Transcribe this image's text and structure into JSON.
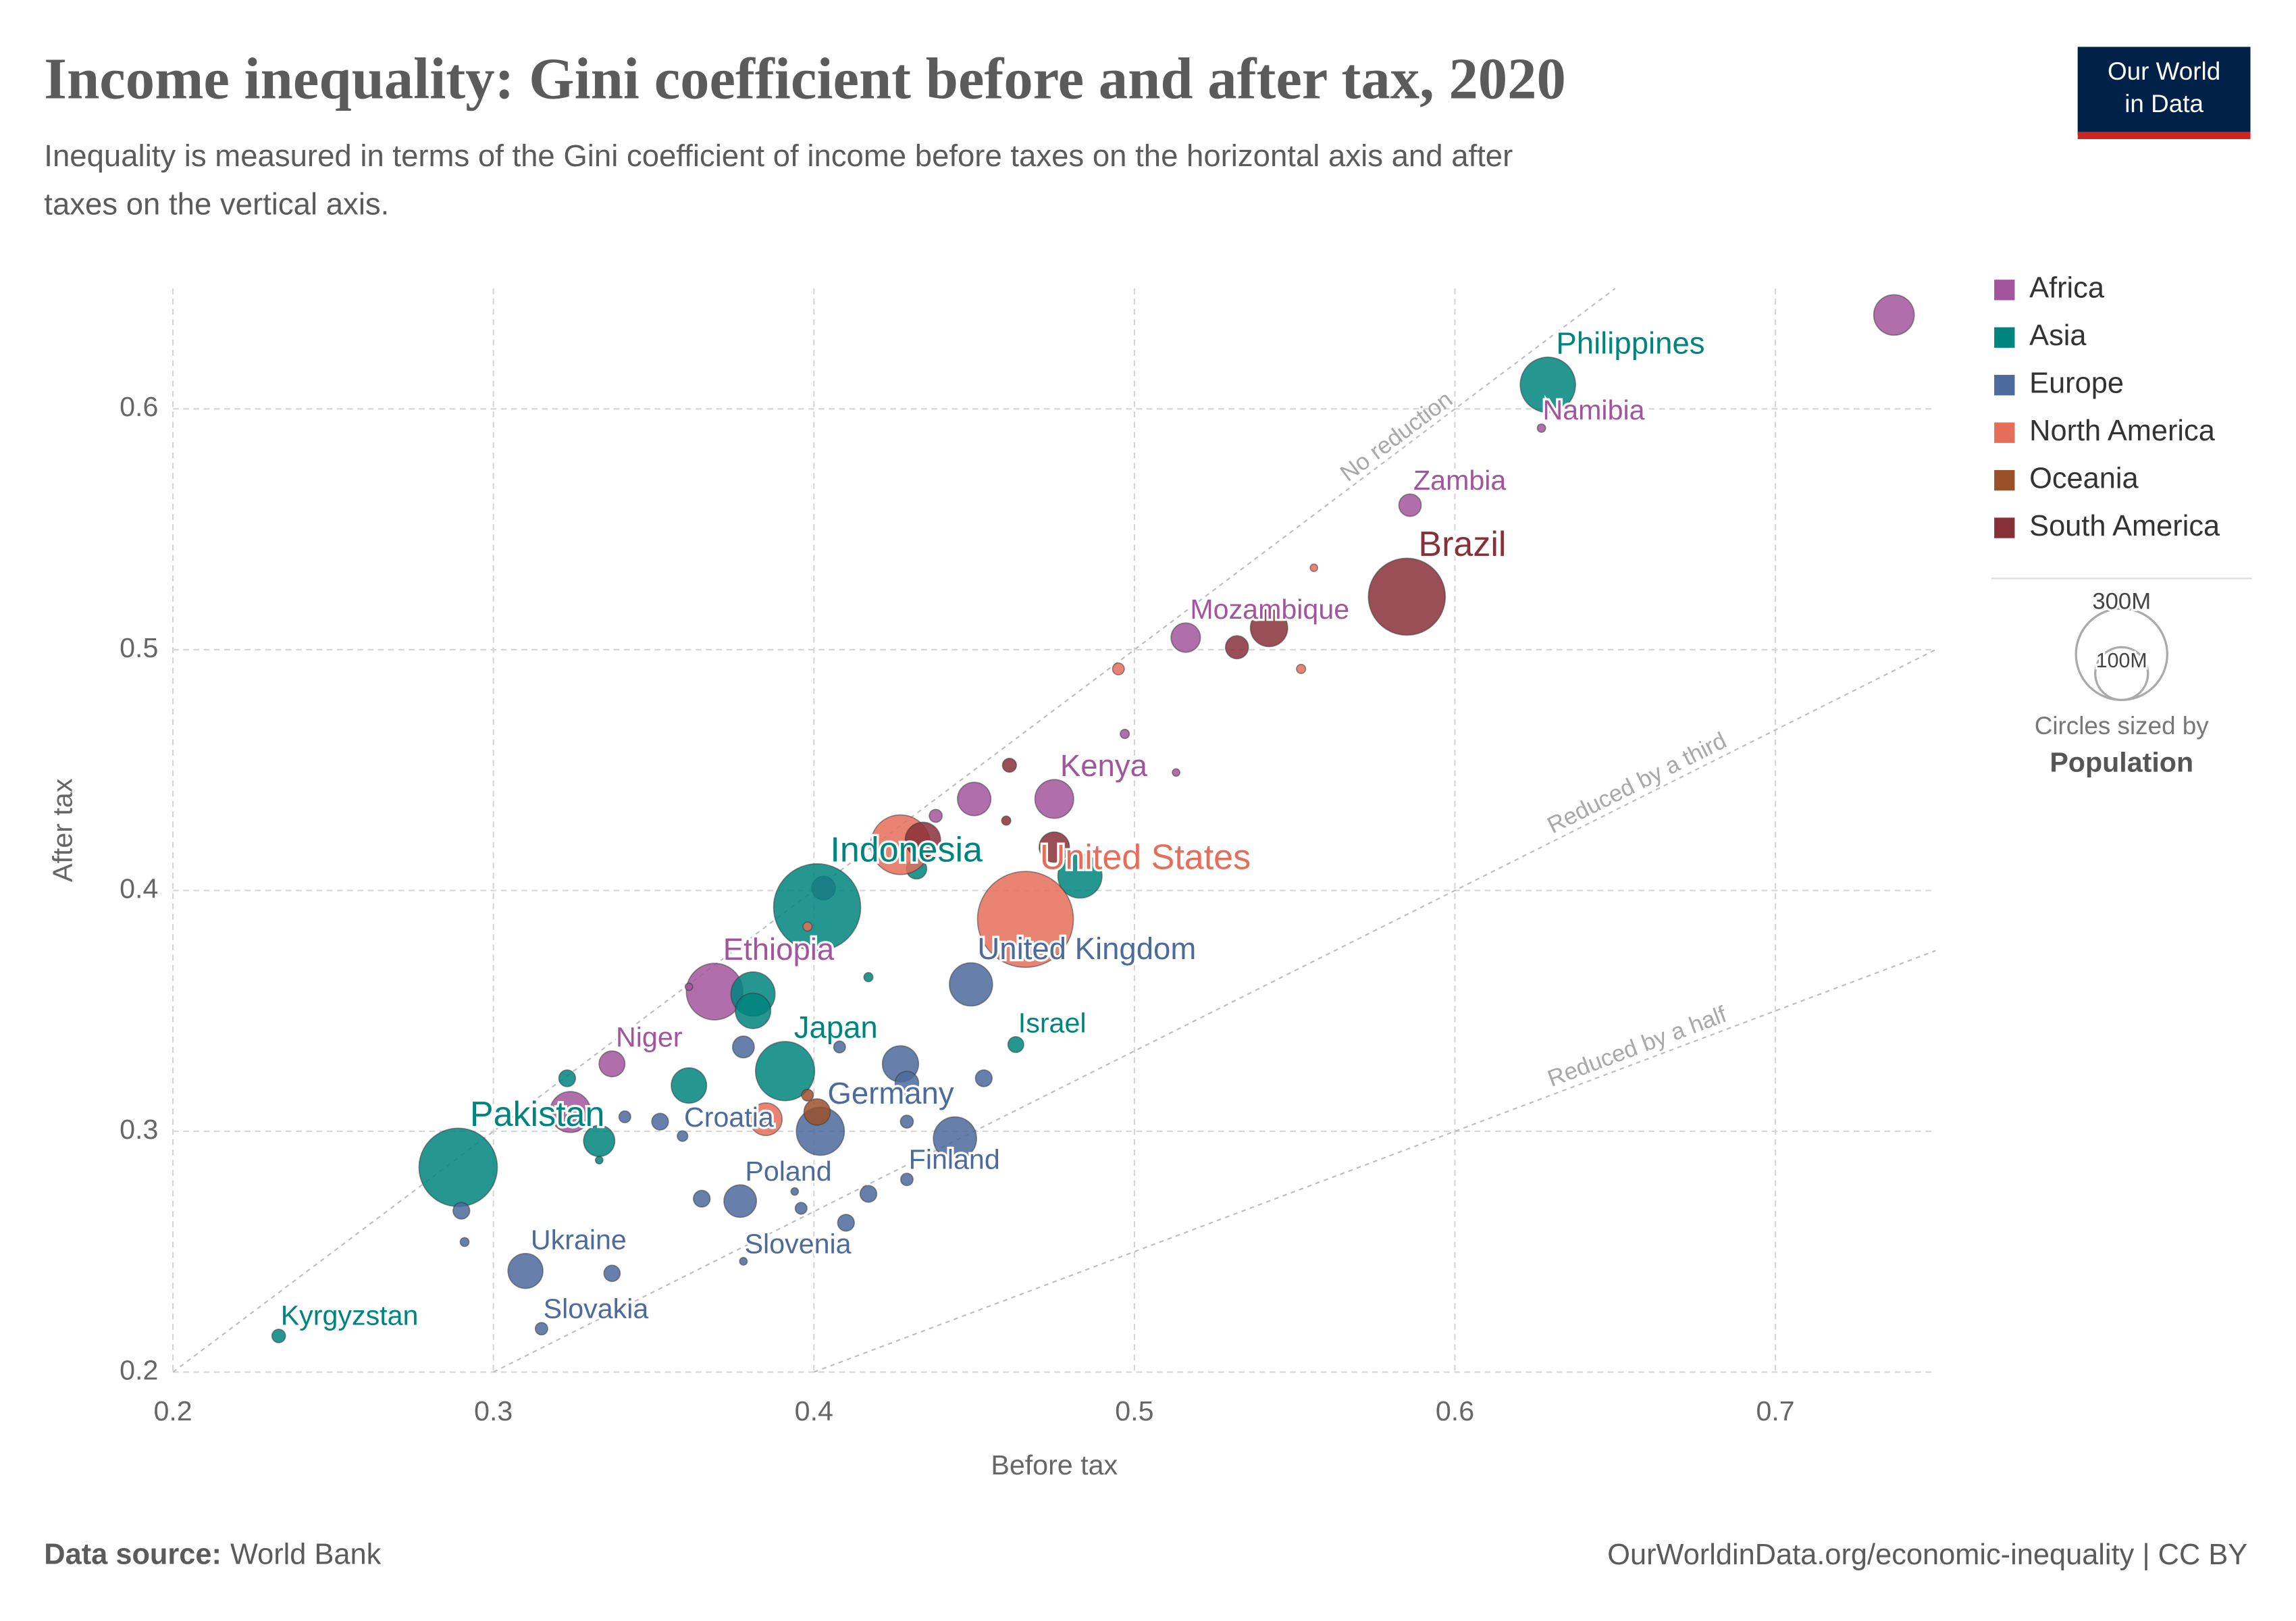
{
  "chart_data": {
    "type": "scatter",
    "title": "Income inequality: Gini coefficient before and after tax, 2020",
    "subtitle": [
      "Inequality is measured in terms of the Gini coefficient of income before taxes on the horizontal axis and after",
      "taxes on the vertical axis."
    ],
    "x_label": "Before tax",
    "y_label": "After tax",
    "xlim": [
      0.2,
      0.75
    ],
    "ylim": [
      0.2,
      0.65
    ],
    "xticks": [
      0.2,
      0.3,
      0.4,
      0.5,
      0.6,
      0.7
    ],
    "yticks": [
      0.2,
      0.3,
      0.4,
      0.5,
      0.6
    ],
    "grid": true,
    "reference_lines": [
      "No reduction",
      "Reduced by a third",
      "Reduced by a half"
    ],
    "size_legend": {
      "values": [
        {
          "value": 300,
          "label": "300M"
        },
        {
          "value": 100,
          "label": "100M"
        }
      ],
      "caption": "Circles sized by",
      "variable": "Population"
    },
    "series": [
      {
        "name": "Africa",
        "color": "#a2559c",
        "x": [
          0.737,
          0.627,
          0.586,
          0.516,
          0.497,
          0.475,
          0.45,
          0.513,
          0.438,
          0.403,
          0.369,
          0.361,
          0.337,
          0.324
        ],
        "y": [
          0.639,
          0.592,
          0.56,
          0.505,
          0.465,
          0.438,
          0.438,
          0.449,
          0.431,
          0.401,
          0.358,
          0.36,
          0.328,
          0.308
        ],
        "sizes": [
          59,
          2.5,
          18,
          31,
          3,
          54,
          40,
          2,
          6,
          20,
          115,
          2,
          24,
          60
        ],
        "labels": [
          null,
          "Namibia",
          "Zambia",
          "Mozambique",
          null,
          "Kenya",
          null,
          null,
          null,
          null,
          "Ethiopia",
          null,
          "Niger",
          null
        ]
      },
      {
        "name": "Asia",
        "color": "#00847e",
        "x": [
          0.629,
          0.401,
          0.483,
          0.432,
          0.381,
          0.381,
          0.417,
          0.391,
          0.361,
          0.323,
          0.333,
          0.333,
          0.289,
          0.463,
          0.233
        ],
        "y": [
          0.61,
          0.393,
          0.406,
          0.409,
          0.357,
          0.35,
          0.364,
          0.325,
          0.319,
          0.322,
          0.296,
          0.288,
          0.285,
          0.336,
          0.215
        ],
        "sizes": [
          110,
          273,
          70,
          15,
          70,
          45,
          3,
          126,
          45,
          10,
          35,
          2,
          221,
          9,
          6.6
        ],
        "labels": [
          "Philippines",
          "Indonesia",
          null,
          null,
          null,
          null,
          null,
          "Japan",
          null,
          null,
          null,
          null,
          "Pakistan",
          "Israel",
          "Kyrgyzstan"
        ]
      },
      {
        "name": "Europe",
        "color": "#4c6a9c",
        "x": [
          0.449,
          0.402,
          0.427,
          0.429,
          0.444,
          0.453,
          0.429,
          0.429,
          0.417,
          0.41,
          0.396,
          0.394,
          0.377,
          0.365,
          0.378,
          0.378,
          0.408,
          0.359,
          0.352,
          0.341,
          0.31,
          0.337,
          0.315,
          0.29,
          0.291
        ],
        "y": [
          0.361,
          0.3,
          0.328,
          0.32,
          0.297,
          0.322,
          0.304,
          0.28,
          0.274,
          0.262,
          0.268,
          0.275,
          0.271,
          0.272,
          0.246,
          0.335,
          0.335,
          0.298,
          0.304,
          0.306,
          0.242,
          0.241,
          0.218,
          0.267,
          0.254
        ],
        "sizes": [
          67,
          83,
          47,
          20,
          67,
          10,
          6,
          5.5,
          10,
          10,
          5,
          2,
          38,
          10,
          2.1,
          17,
          5,
          4,
          10,
          5,
          44,
          9.5,
          5.5,
          10,
          2.8
        ],
        "labels": [
          "United Kingdom",
          "Germany",
          null,
          null,
          null,
          null,
          null,
          "Finland",
          null,
          null,
          null,
          null,
          "Poland",
          null,
          "Slovenia",
          null,
          null,
          "Croatia",
          null,
          null,
          "Ukraine",
          null,
          "Slovakia",
          null,
          null
        ]
      },
      {
        "name": "North America",
        "color": "#e56e5a",
        "x": [
          0.466,
          0.427,
          0.385,
          0.495,
          0.552,
          0.556,
          0.398
        ],
        "y": [
          0.388,
          0.419,
          0.305,
          0.492,
          0.492,
          0.534,
          0.385
        ],
        "sizes": [
          331,
          128,
          38,
          5,
          3,
          2,
          3
        ],
        "labels": [
          "United States",
          null,
          null,
          null,
          null,
          null,
          null
        ]
      },
      {
        "name": "Oceania",
        "color": "#9a5129",
        "x": [
          0.401,
          0.398
        ],
        "y": [
          0.308,
          0.315
        ],
        "sizes": [
          25,
          5
        ],
        "labels": [
          null,
          null
        ]
      },
      {
        "name": "South America",
        "color": "#883039",
        "x": [
          0.585,
          0.542,
          0.532,
          0.475,
          0.434,
          0.461,
          0.46
        ],
        "y": [
          0.522,
          0.509,
          0.501,
          0.418,
          0.421,
          0.452,
          0.429
        ],
        "sizes": [
          213,
          50,
          19,
          33,
          45,
          7,
          3
        ],
        "labels": [
          "Brazil",
          null,
          null,
          null,
          null,
          null,
          null
        ]
      }
    ]
  },
  "logo": [
    "Our World",
    "in Data"
  ],
  "footer": {
    "source_label": "Data source:",
    "source": "World Bank",
    "url": "OurWorldinData.org/economic-inequality | CC BY"
  }
}
